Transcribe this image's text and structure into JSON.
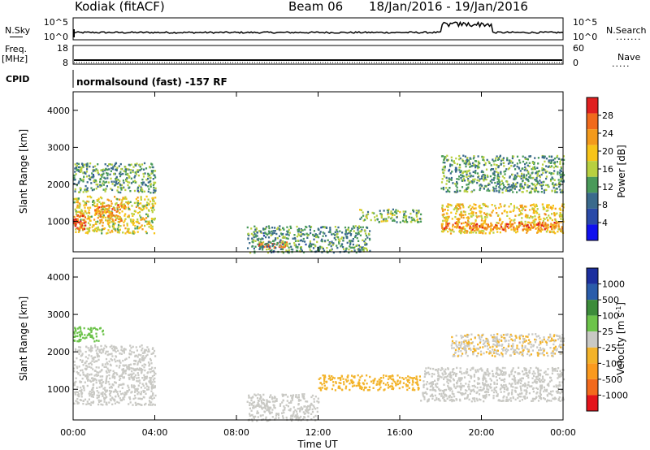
{
  "header": {
    "station": "Kodiak (fitACF)",
    "beam": "Beam 06",
    "date_range": "18/Jan/2016 - 19/Jan/2016"
  },
  "left_labels": {
    "nsky": "N.Sky",
    "freq": "Freq.",
    "freq_unit": "[MHz]",
    "cpid": "CPID"
  },
  "right_labels": {
    "nsearch": "N.Search",
    "nave": "Nave"
  },
  "cpid_text": "normalsound (fast) -157 RF",
  "noise_axis": {
    "left_ticks": [
      "10^5",
      "10^0"
    ],
    "right_ticks": [
      "10^5",
      "10^0"
    ]
  },
  "freq_axis": {
    "left_ticks": [
      "18",
      "8"
    ],
    "right_ticks": [
      "60",
      "0"
    ]
  },
  "colors": {
    "velocity": [
      "#e4141b",
      "#f36a1d",
      "#fb9a1e",
      "#f3b32a",
      "#c9c9c4",
      "#6cc34a",
      "#3c8c3a",
      "#2a5caa",
      "#1c2f9e"
    ],
    "power": [
      "#1010ee",
      "#2a4aa8",
      "#3a6a8c",
      "#4a9a5a",
      "#b8d040",
      "#f7c419",
      "#f39a1c",
      "#f06a1c",
      "#e02020"
    ]
  },
  "chart_data": [
    {
      "type": "heatmap",
      "panel": "power",
      "ylabel": "Slant Range [km]",
      "ylim": [
        180,
        4500
      ],
      "yticks": [
        "4000",
        "3000",
        "2000",
        "1000"
      ],
      "colorbar_label": "Power [dB]",
      "colorbar_ticks": [
        "28",
        "24",
        "20",
        "16",
        "12",
        "8",
        "4"
      ],
      "colorbar_range": [
        0,
        32
      ],
      "regions": [
        {
          "t": [
            0.0,
            4.0
          ],
          "range": [
            700,
            1700
          ],
          "value": 18
        },
        {
          "t": [
            0.0,
            0.6
          ],
          "range": [
            800,
            1200
          ],
          "value": 28
        },
        {
          "t": [
            1.0,
            2.5
          ],
          "range": [
            1000,
            1500
          ],
          "value": 24
        },
        {
          "t": [
            0.0,
            4.0
          ],
          "range": [
            1800,
            2600
          ],
          "value": 12
        },
        {
          "t": [
            9.0,
            10.5
          ],
          "range": [
            300,
            500
          ],
          "value": 28
        },
        {
          "t": [
            8.5,
            14.5
          ],
          "range": [
            180,
            900
          ],
          "value": 12
        },
        {
          "t": [
            14.0,
            17.0
          ],
          "range": [
            1000,
            1350
          ],
          "value": 14
        },
        {
          "t": [
            18.0,
            24.0
          ],
          "range": [
            700,
            1500
          ],
          "value": 20
        },
        {
          "t": [
            18.0,
            24.0
          ],
          "range": [
            800,
            1000
          ],
          "value": 26
        },
        {
          "t": [
            18.0,
            24.0
          ],
          "range": [
            1800,
            2800
          ],
          "value": 12
        }
      ]
    },
    {
      "type": "heatmap",
      "panel": "velocity",
      "ylabel": "Slant Range [km]",
      "ylim": [
        180,
        4500
      ],
      "yticks": [
        "4000",
        "3000",
        "2000",
        "1000"
      ],
      "colorbar_label": "Velocity [m s^-1]",
      "colorbar_ticks": [
        "1000",
        "500",
        "100",
        "25",
        "-25",
        "-100",
        "-500",
        "-1000"
      ],
      "colorbar_range": [
        -1000,
        1000
      ],
      "regions": [
        {
          "t": [
            0.0,
            4.0
          ],
          "range": [
            600,
            2200
          ],
          "value": 0
        },
        {
          "t": [
            0.0,
            1.5
          ],
          "range": [
            2300,
            2700
          ],
          "value": 200
        },
        {
          "t": [
            8.5,
            12.0
          ],
          "range": [
            180,
            900
          ],
          "value": 0
        },
        {
          "t": [
            12.0,
            17.0
          ],
          "range": [
            1000,
            1400
          ],
          "value": -200
        },
        {
          "t": [
            17.0,
            24.0
          ],
          "range": [
            700,
            1600
          ],
          "value": 0
        },
        {
          "t": [
            18.5,
            24.0
          ],
          "range": [
            1900,
            2500
          ],
          "value": -100
        }
      ]
    }
  ],
  "xaxis": {
    "ticks": [
      "00:00",
      "04:00",
      "08:00",
      "12:00",
      "16:00",
      "20:00",
      "00:00"
    ],
    "label": "Time UT",
    "range_hours": [
      0,
      24
    ]
  }
}
